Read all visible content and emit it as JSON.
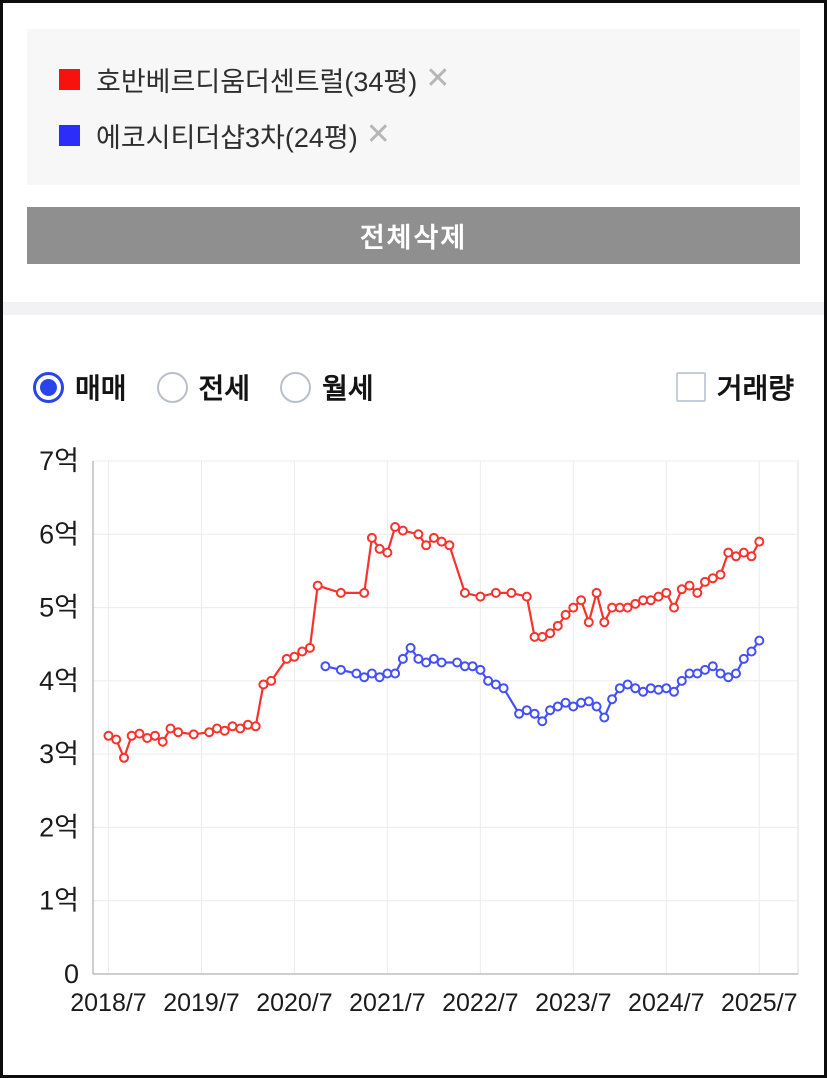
{
  "legend": {
    "items": [
      {
        "label": "호반베르디움더센트럴(34평)",
        "color": "#f8120e"
      },
      {
        "label": "에코시티더샵3차(24평)",
        "color": "#2b2df8"
      }
    ],
    "remove_icon": "✕"
  },
  "actions": {
    "delete_all_label": "전체삭제"
  },
  "controls": {
    "trade_types": [
      {
        "label": "매매",
        "selected": true
      },
      {
        "label": "전세",
        "selected": false
      },
      {
        "label": "월세",
        "selected": false
      }
    ],
    "volume_checkbox": {
      "label": "거래량",
      "checked": false
    },
    "accent_color": "#2b43eb"
  },
  "chart_data": {
    "type": "line",
    "title": "",
    "unit": "억원",
    "grid": true,
    "legend_position": "external-top",
    "x_axis": {
      "unit": "months since 2018/7",
      "tick_months": [
        0,
        12,
        24,
        36,
        48,
        60,
        72,
        84
      ],
      "tick_labels": [
        "2018/7",
        "2019/7",
        "2020/7",
        "2021/7",
        "2022/7",
        "2023/7",
        "2024/7",
        "2025/7"
      ],
      "range_months": [
        -2,
        89
      ]
    },
    "y_axis": {
      "tick_values": [
        0,
        1,
        2,
        3,
        4,
        5,
        6,
        7
      ],
      "tick_labels": [
        "0",
        "1억",
        "2억",
        "3억",
        "4억",
        "5억",
        "6억",
        "7억"
      ],
      "range": [
        0,
        7
      ]
    },
    "series": [
      {
        "name": "호반베르디움더센트럴(34평)",
        "color": "#f8322c",
        "points": [
          [
            0,
            3.25
          ],
          [
            1,
            3.2
          ],
          [
            2,
            2.95
          ],
          [
            3,
            3.25
          ],
          [
            4,
            3.28
          ],
          [
            5,
            3.22
          ],
          [
            6,
            3.25
          ],
          [
            7,
            3.17
          ],
          [
            8,
            3.35
          ],
          [
            9,
            3.3
          ],
          [
            11,
            3.27
          ],
          [
            13,
            3.3
          ],
          [
            14,
            3.35
          ],
          [
            15,
            3.32
          ],
          [
            16,
            3.38
          ],
          [
            17,
            3.35
          ],
          [
            18,
            3.4
          ],
          [
            19,
            3.38
          ],
          [
            20,
            3.95
          ],
          [
            21,
            4.0
          ],
          [
            23,
            4.3
          ],
          [
            24,
            4.33
          ],
          [
            25,
            4.4
          ],
          [
            26,
            4.45
          ],
          [
            27,
            5.3
          ],
          [
            30,
            5.2
          ],
          [
            33,
            5.2
          ],
          [
            34,
            5.95
          ],
          [
            35,
            5.8
          ],
          [
            36,
            5.75
          ],
          [
            37,
            6.1
          ],
          [
            38,
            6.05
          ],
          [
            40,
            6.0
          ],
          [
            41,
            5.85
          ],
          [
            42,
            5.95
          ],
          [
            43,
            5.9
          ],
          [
            44,
            5.85
          ],
          [
            46,
            5.2
          ],
          [
            48,
            5.15
          ],
          [
            50,
            5.2
          ],
          [
            52,
            5.2
          ],
          [
            54,
            5.15
          ],
          [
            55,
            4.6
          ],
          [
            56,
            4.6
          ],
          [
            57,
            4.65
          ],
          [
            58,
            4.75
          ],
          [
            59,
            4.9
          ],
          [
            60,
            5.0
          ],
          [
            61,
            5.1
          ],
          [
            62,
            4.8
          ],
          [
            63,
            5.2
          ],
          [
            64,
            4.8
          ],
          [
            65,
            5.0
          ],
          [
            66,
            5.0
          ],
          [
            67,
            5.0
          ],
          [
            68,
            5.05
          ],
          [
            69,
            5.1
          ],
          [
            70,
            5.1
          ],
          [
            71,
            5.15
          ],
          [
            72,
            5.2
          ],
          [
            73,
            5.0
          ],
          [
            74,
            5.25
          ],
          [
            75,
            5.3
          ],
          [
            76,
            5.2
          ],
          [
            77,
            5.35
          ],
          [
            78,
            5.4
          ],
          [
            79,
            5.45
          ],
          [
            80,
            5.75
          ],
          [
            81,
            5.7
          ],
          [
            82,
            5.75
          ],
          [
            83,
            5.7
          ],
          [
            84,
            5.9
          ]
        ]
      },
      {
        "name": "에코시티더샵3차(24평)",
        "color": "#4450f8",
        "points": [
          [
            28,
            4.2
          ],
          [
            30,
            4.15
          ],
          [
            32,
            4.1
          ],
          [
            33,
            4.05
          ],
          [
            34,
            4.1
          ],
          [
            35,
            4.05
          ],
          [
            36,
            4.1
          ],
          [
            37,
            4.1
          ],
          [
            38,
            4.3
          ],
          [
            39,
            4.45
          ],
          [
            40,
            4.3
          ],
          [
            41,
            4.25
          ],
          [
            42,
            4.3
          ],
          [
            43,
            4.25
          ],
          [
            45,
            4.25
          ],
          [
            46,
            4.2
          ],
          [
            47,
            4.2
          ],
          [
            48,
            4.15
          ],
          [
            49,
            4.0
          ],
          [
            50,
            3.95
          ],
          [
            51,
            3.9
          ],
          [
            53,
            3.55
          ],
          [
            54,
            3.6
          ],
          [
            55,
            3.55
          ],
          [
            56,
            3.45
          ],
          [
            57,
            3.6
          ],
          [
            58,
            3.65
          ],
          [
            59,
            3.7
          ],
          [
            60,
            3.65
          ],
          [
            61,
            3.7
          ],
          [
            62,
            3.72
          ],
          [
            63,
            3.65
          ],
          [
            64,
            3.5
          ],
          [
            65,
            3.75
          ],
          [
            66,
            3.9
          ],
          [
            67,
            3.95
          ],
          [
            68,
            3.9
          ],
          [
            69,
            3.85
          ],
          [
            70,
            3.9
          ],
          [
            71,
            3.88
          ],
          [
            72,
            3.9
          ],
          [
            73,
            3.85
          ],
          [
            74,
            4.0
          ],
          [
            75,
            4.1
          ],
          [
            76,
            4.1
          ],
          [
            77,
            4.15
          ],
          [
            78,
            4.2
          ],
          [
            79,
            4.1
          ],
          [
            80,
            4.05
          ],
          [
            81,
            4.1
          ],
          [
            82,
            4.3
          ],
          [
            83,
            4.4
          ],
          [
            84,
            4.55
          ]
        ]
      }
    ]
  }
}
